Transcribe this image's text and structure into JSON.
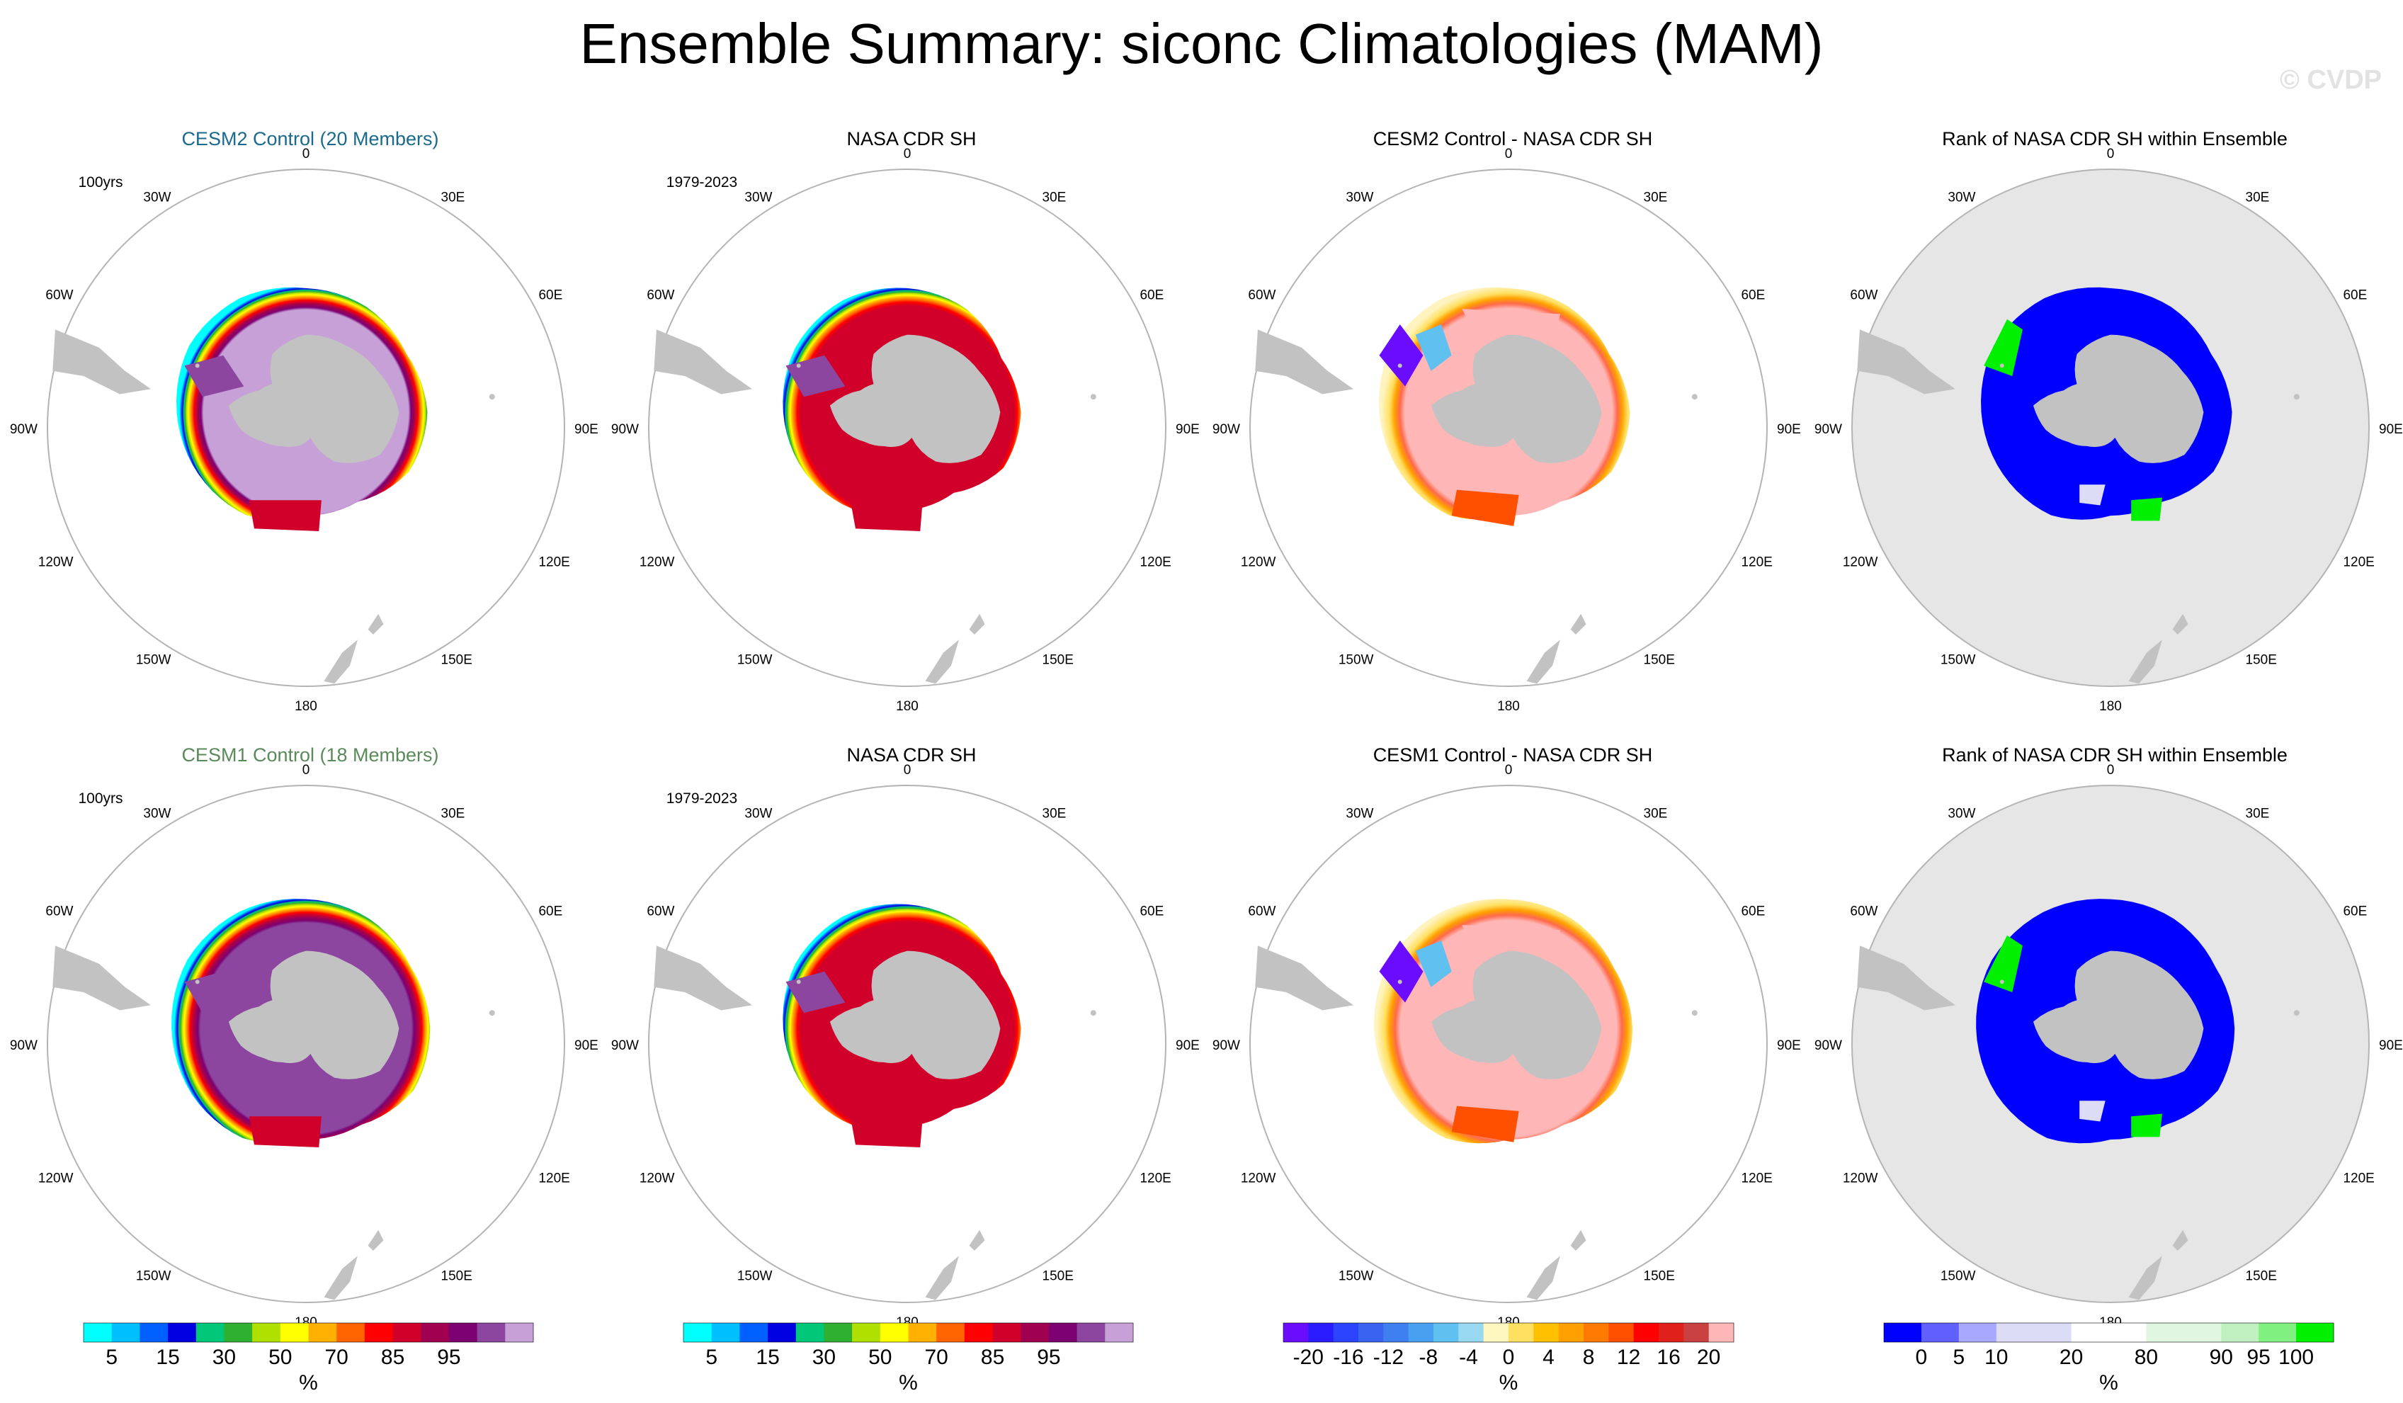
{
  "page": {
    "title": "Ensemble Summary: siconc Climatologies (MAM)",
    "watermark": "© CVDP"
  },
  "colors": {
    "land": "#c2c2c2",
    "rank_ocean": "#e6e6e6",
    "outline": "#b4b4b4",
    "cesm2_title": "#1b6a8c",
    "cesm1_title": "#5a8a5a"
  },
  "meridian_labels": [
    "0",
    "30E",
    "60E",
    "90E",
    "120E",
    "150E",
    "180",
    "150W",
    "120W",
    "90W",
    "60W",
    "30W"
  ],
  "panels": [
    {
      "id": "cesm2-mean",
      "title": "CESM2 Control (20 Members)",
      "title_color": "#1b6a8c",
      "corner_text": "100yrs",
      "kind": "conc",
      "variant": "cesm2"
    },
    {
      "id": "obs-row1",
      "title": "NASA CDR SH",
      "title_color": "#000000",
      "corner_text": "1979-2023",
      "kind": "conc",
      "variant": "obs"
    },
    {
      "id": "cesm2-diff",
      "title": "CESM2 Control - NASA CDR SH",
      "title_color": "#000000",
      "corner_text": "",
      "kind": "diff",
      "variant": "cesm2"
    },
    {
      "id": "rank-row1",
      "title": "Rank of NASA CDR SH within Ensemble",
      "title_color": "#000000",
      "corner_text": "",
      "kind": "rank",
      "variant": "cesm2"
    },
    {
      "id": "cesm1-mean",
      "title": "CESM1 Control (18 Members)",
      "title_color": "#5a8a5a",
      "corner_text": "100yrs",
      "kind": "conc",
      "variant": "cesm1"
    },
    {
      "id": "obs-row2",
      "title": "NASA CDR SH",
      "title_color": "#000000",
      "corner_text": "1979-2023",
      "kind": "conc",
      "variant": "obs"
    },
    {
      "id": "cesm1-diff",
      "title": "CESM1 Control - NASA CDR SH",
      "title_color": "#000000",
      "corner_text": "",
      "kind": "diff",
      "variant": "cesm1"
    },
    {
      "id": "rank-row2",
      "title": "Rank of NASA CDR SH within Ensemble",
      "title_color": "#000000",
      "corner_text": "",
      "kind": "rank",
      "variant": "cesm1"
    }
  ],
  "colorbars": [
    {
      "id": "conc-bar",
      "unit": "%",
      "colors": [
        "#00ffff",
        "#00bfff",
        "#0060ff",
        "#0000e0",
        "#00c878",
        "#30b030",
        "#b0e000",
        "#ffff00",
        "#ffb000",
        "#ff6400",
        "#ff0000",
        "#d0002a",
        "#a00050",
        "#7c0072",
        "#8c46a0",
        "#c8a0d8"
      ],
      "labels": [
        {
          "v": "5",
          "edge": 1
        },
        {
          "v": "15",
          "edge": 3
        },
        {
          "v": "30",
          "edge": 5
        },
        {
          "v": "50",
          "edge": 7
        },
        {
          "v": "70",
          "edge": 9
        },
        {
          "v": "85",
          "edge": 11
        },
        {
          "v": "95",
          "edge": 13
        }
      ]
    },
    {
      "id": "conc-bar-2",
      "unit": "%",
      "colors": [
        "#00ffff",
        "#00bfff",
        "#0060ff",
        "#0000e0",
        "#00c878",
        "#30b030",
        "#b0e000",
        "#ffff00",
        "#ffb000",
        "#ff6400",
        "#ff0000",
        "#d0002a",
        "#a00050",
        "#7c0072",
        "#8c46a0",
        "#c8a0d8"
      ],
      "labels": [
        {
          "v": "5",
          "edge": 1
        },
        {
          "v": "15",
          "edge": 3
        },
        {
          "v": "30",
          "edge": 5
        },
        {
          "v": "50",
          "edge": 7
        },
        {
          "v": "70",
          "edge": 9
        },
        {
          "v": "85",
          "edge": 11
        },
        {
          "v": "95",
          "edge": 13
        }
      ]
    },
    {
      "id": "diff-bar",
      "unit": "%",
      "colors": [
        "#6a0dff",
        "#2b1bff",
        "#2c44ff",
        "#3a64f0",
        "#3f80f0",
        "#4aa0f0",
        "#60c0f0",
        "#98d8f0",
        "#fff7c0",
        "#ffe060",
        "#ffc000",
        "#ffa000",
        "#ff7a00",
        "#ff5000",
        "#ff0000",
        "#e0201a",
        "#c84040",
        "#ffb6b6"
      ],
      "labels": [
        {
          "v": "-20",
          "edge": 1
        },
        {
          "v": "-16",
          "edge": 2
        },
        {
          "v": "-12",
          "edge": 3
        },
        {
          "v": "-8",
          "edge": 4
        },
        {
          "v": "-4",
          "edge": 5
        },
        {
          "v": "0",
          "edge": 6
        },
        {
          "v": "4",
          "edge": 7
        },
        {
          "v": "8",
          "edge": 8
        },
        {
          "v": "12",
          "edge": 9
        },
        {
          "v": "16",
          "edge": 10
        },
        {
          "v": "20",
          "edge": 11
        }
      ]
    },
    {
      "id": "rank-bar",
      "unit": "%",
      "colors": [
        "#0000ff",
        "#6060ff",
        "#a8a8ff",
        "#dcdcf6",
        "#dcdcf6",
        "#ffffff",
        "#ffffff",
        "#e0f6e0",
        "#e0f6e0",
        "#c0f0c0",
        "#80f080",
        "#00f000"
      ],
      "labels": [
        {
          "v": "0",
          "edge": 1
        },
        {
          "v": "5",
          "edge": 2
        },
        {
          "v": "10",
          "edge": 3
        },
        {
          "v": "20",
          "edge": 5
        },
        {
          "v": "80",
          "edge": 7
        },
        {
          "v": "90",
          "edge": 9
        },
        {
          "v": "95",
          "edge": 10
        },
        {
          "v": "100",
          "edge": 11
        }
      ]
    }
  ],
  "chart_data": [
    {
      "type": "heatmap",
      "title": "CESM2 Control (20 Members)",
      "annotation": "100yrs",
      "projection": "south polar stereographic",
      "variable": "siconc",
      "season": "MAM",
      "units": "%",
      "levels": [
        5,
        10,
        15,
        20,
        30,
        40,
        50,
        60,
        70,
        80,
        85,
        90,
        95,
        97.5,
        99
      ]
    },
    {
      "type": "heatmap",
      "title": "NASA CDR SH",
      "annotation": "1979-2023",
      "projection": "south polar stereographic",
      "variable": "siconc",
      "season": "MAM",
      "units": "%"
    },
    {
      "type": "heatmap",
      "title": "CESM2 Control - NASA CDR SH",
      "projection": "south polar stereographic",
      "units": "%",
      "levels": [
        -20,
        -16,
        -12,
        -8,
        -4,
        0,
        4,
        8,
        12,
        16,
        20
      ]
    },
    {
      "type": "heatmap",
      "title": "Rank of NASA CDR SH within Ensemble",
      "projection": "south polar stereographic",
      "units": "%",
      "levels": [
        0,
        5,
        10,
        20,
        80,
        90,
        95,
        100
      ]
    },
    {
      "type": "heatmap",
      "title": "CESM1 Control (18 Members)",
      "annotation": "100yrs",
      "projection": "south polar stereographic",
      "variable": "siconc",
      "season": "MAM",
      "units": "%"
    },
    {
      "type": "heatmap",
      "title": "NASA CDR SH",
      "annotation": "1979-2023",
      "projection": "south polar stereographic",
      "variable": "siconc",
      "season": "MAM",
      "units": "%"
    },
    {
      "type": "heatmap",
      "title": "CESM1 Control - NASA CDR SH",
      "projection": "south polar stereographic",
      "units": "%",
      "levels": [
        -20,
        -16,
        -12,
        -8,
        -4,
        0,
        4,
        8,
        12,
        16,
        20
      ]
    },
    {
      "type": "heatmap",
      "title": "Rank of NASA CDR SH within Ensemble",
      "projection": "south polar stereographic",
      "units": "%",
      "levels": [
        0,
        5,
        10,
        20,
        80,
        90,
        95,
        100
      ]
    }
  ]
}
